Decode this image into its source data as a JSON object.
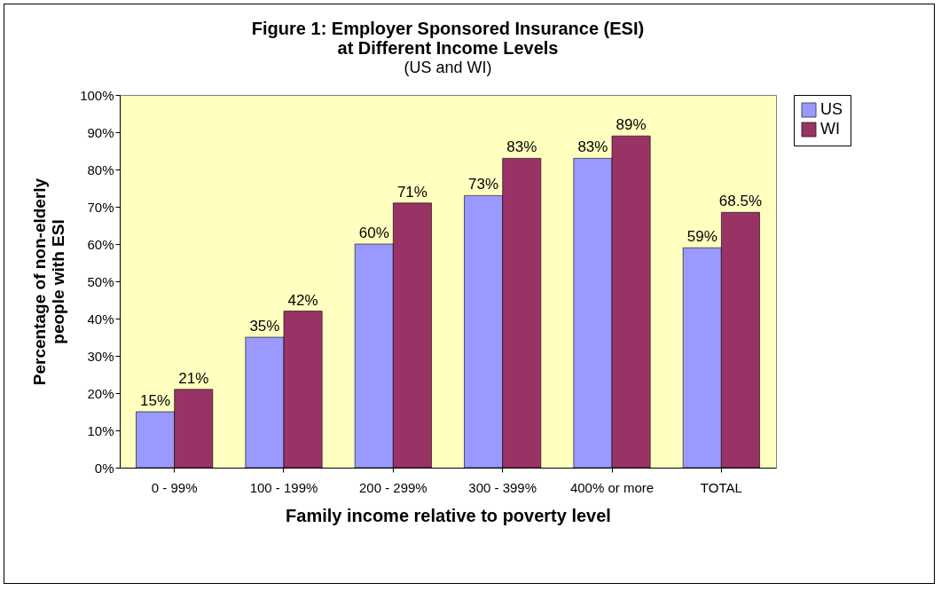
{
  "chart_data": {
    "type": "bar",
    "title": "Figure 1: Employer Sponsored Insurance (ESI)\nat Different Income Levels",
    "subtitle": "(US and WI)",
    "xlabel": "Family income relative to poverty level",
    "ylabel": "Percentage of non-elderly\npeople with ESI",
    "categories": [
      "0 - 99%",
      "100 - 199%",
      "200 - 299%",
      "300 - 399%",
      "400% or more",
      "TOTAL"
    ],
    "series": [
      {
        "name": "US",
        "color": "#9999ff",
        "values": [
          15,
          35,
          60,
          73,
          83,
          59
        ],
        "value_labels": [
          "15%",
          "35%",
          "60%",
          "73%",
          "83%",
          "59%"
        ]
      },
      {
        "name": "WI",
        "color": "#993366",
        "values": [
          21,
          42,
          71,
          83,
          89,
          68.5
        ],
        "value_labels": [
          "21%",
          "42%",
          "71%",
          "83%",
          "89%",
          "68.5%"
        ]
      }
    ],
    "ylim": [
      0,
      100
    ],
    "yticks": [
      {
        "value": 0,
        "label": "0%"
      },
      {
        "value": 10,
        "label": "10%"
      },
      {
        "value": 20,
        "label": "20%"
      },
      {
        "value": 30,
        "label": "30%"
      },
      {
        "value": 40,
        "label": "40%"
      },
      {
        "value": 50,
        "label": "50%"
      },
      {
        "value": 60,
        "label": "60%"
      },
      {
        "value": 70,
        "label": "70%"
      },
      {
        "value": 80,
        "label": "80%"
      },
      {
        "value": 90,
        "label": "90%"
      },
      {
        "value": 100,
        "label": "100%"
      }
    ],
    "grid": false,
    "legend": "right"
  }
}
